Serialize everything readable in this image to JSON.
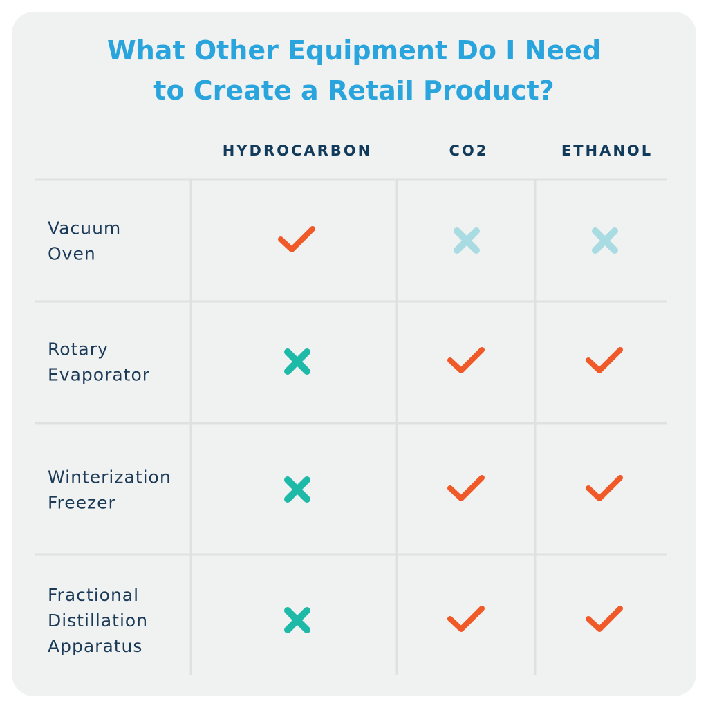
{
  "title_lines": [
    "What Other Equipment Do I Need",
    "to Create a Retail Product?"
  ],
  "table": {
    "columns": [
      "HYDROCARBON",
      "CO2",
      "ETHANOL"
    ],
    "check_color": "#f05a28",
    "rows": [
      {
        "label_lines": [
          "Vacuum",
          "Oven"
        ],
        "cells": [
          true,
          false,
          false
        ],
        "cross_color": "#a9dbe3"
      },
      {
        "label_lines": [
          "Rotary",
          "Evaporator"
        ],
        "cells": [
          false,
          true,
          true
        ],
        "cross_color": "#1fb9a8"
      },
      {
        "label_lines": [
          "Winterization",
          "Freezer"
        ],
        "cells": [
          false,
          true,
          true
        ],
        "cross_color": "#1fb9a8"
      },
      {
        "label_lines": [
          "Fractional",
          "Distillation",
          "Apparatus"
        ],
        "cells": [
          false,
          true,
          true
        ],
        "cross_color": "#1fb9a8"
      }
    ]
  }
}
